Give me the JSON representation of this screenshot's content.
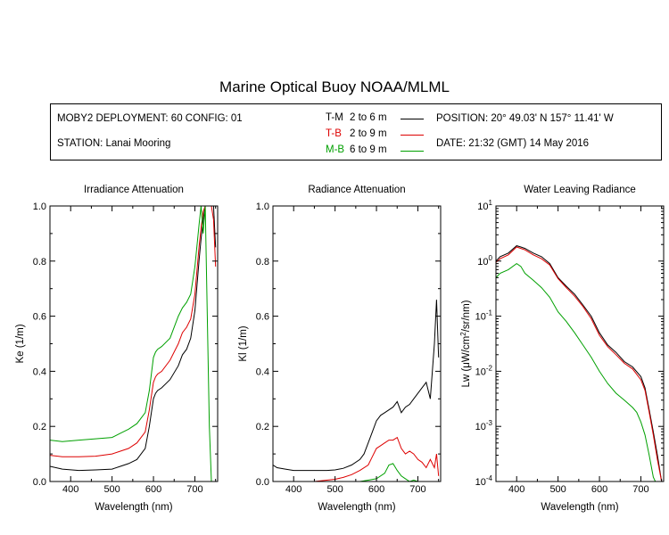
{
  "title": "Marine Optical Buoy NOAA/MLML",
  "info": {
    "deployment": "MOBY2 DEPLOYMENT: 60 CONFIG: 01",
    "station": "STATION: Lanai Mooring",
    "position": "POSITION: 20° 49.03' N   157° 11.41' W",
    "date": "DATE: 21:32 (GMT) 14 May 2016",
    "legend": [
      {
        "code": "T-M",
        "range": "2 to 6  m",
        "color": "#000000"
      },
      {
        "code": "T-B",
        "range": "2 to 9  m",
        "color": "#dd0000"
      },
      {
        "code": "M-B",
        "range": "6 to 9  m",
        "color": "#00a000"
      }
    ]
  },
  "colors": {
    "T-M": "#000000",
    "T-B": "#dd0000",
    "M-B": "#00a000"
  },
  "chart_data": [
    {
      "type": "line",
      "title": "Irradiance Attenuation",
      "xlabel": "Wavelength (nm)",
      "ylabel": "Ke  (1/m)",
      "xlim": [
        350,
        755
      ],
      "ylim": [
        0,
        1
      ],
      "xticks": [
        400,
        500,
        600,
        700
      ],
      "yticks": [
        0.0,
        0.2,
        0.4,
        0.6,
        0.8,
        1.0
      ],
      "ytick_labels": [
        "0.0",
        "0.2",
        "0.4",
        "0.6",
        "0.8",
        "1.0"
      ],
      "grid": false,
      "series": [
        {
          "name": "T-M",
          "x": [
            350,
            380,
            420,
            460,
            500,
            520,
            540,
            560,
            580,
            590,
            600,
            605,
            610,
            620,
            640,
            660,
            670,
            680,
            690,
            700,
            710,
            715,
            720,
            725,
            730,
            740,
            745,
            750
          ],
          "y": [
            0.055,
            0.045,
            0.04,
            0.042,
            0.045,
            0.055,
            0.065,
            0.08,
            0.12,
            0.2,
            0.3,
            0.32,
            0.33,
            0.34,
            0.37,
            0.42,
            0.46,
            0.48,
            0.52,
            0.62,
            0.8,
            0.88,
            0.95,
            1.0,
            1.0,
            1.0,
            1.0,
            0.85
          ]
        },
        {
          "name": "T-B",
          "x": [
            350,
            380,
            420,
            460,
            500,
            520,
            540,
            560,
            580,
            590,
            600,
            605,
            610,
            620,
            640,
            660,
            670,
            680,
            690,
            700,
            710,
            715,
            720,
            725,
            730,
            740,
            745,
            750
          ],
          "y": [
            0.095,
            0.09,
            0.09,
            0.092,
            0.1,
            0.11,
            0.12,
            0.14,
            0.18,
            0.26,
            0.36,
            0.38,
            0.39,
            0.4,
            0.44,
            0.5,
            0.54,
            0.56,
            0.59,
            0.68,
            0.85,
            0.92,
            0.98,
            1.0,
            1.0,
            1.0,
            0.95,
            0.78
          ]
        },
        {
          "name": "M-B",
          "x": [
            350,
            380,
            420,
            460,
            500,
            520,
            540,
            560,
            580,
            590,
            600,
            605,
            610,
            620,
            640,
            660,
            670,
            680,
            690,
            700,
            710,
            715,
            720,
            725,
            730,
            735,
            740,
            745,
            750
          ],
          "y": [
            0.15,
            0.145,
            0.15,
            0.155,
            0.16,
            0.175,
            0.19,
            0.21,
            0.25,
            0.33,
            0.45,
            0.47,
            0.48,
            0.49,
            0.52,
            0.6,
            0.63,
            0.65,
            0.68,
            0.78,
            0.93,
            1.0,
            0.9,
            1.0,
            0.6,
            0.2,
            0.0,
            0.0,
            0.0
          ]
        }
      ]
    },
    {
      "type": "line",
      "title": "Radiance Attenuation",
      "xlabel": "Wavelength (nm)",
      "ylabel": "Kl  (1/m)",
      "xlim": [
        350,
        755
      ],
      "ylim": [
        0,
        1
      ],
      "xticks": [
        400,
        500,
        600,
        700
      ],
      "yticks": [
        0.0,
        0.2,
        0.4,
        0.6,
        0.8,
        1.0
      ],
      "ytick_labels": [
        "0.0",
        "0.2",
        "0.4",
        "0.6",
        "0.8",
        "1.0"
      ],
      "grid": false,
      "series": [
        {
          "name": "T-M",
          "x": [
            350,
            360,
            380,
            400,
            420,
            440,
            460,
            480,
            500,
            520,
            540,
            560,
            570,
            580,
            590,
            600,
            610,
            620,
            640,
            650,
            660,
            670,
            680,
            690,
            700,
            710,
            720,
            730,
            735,
            740,
            745,
            750
          ],
          "y": [
            0.06,
            0.05,
            0.045,
            0.04,
            0.04,
            0.04,
            0.04,
            0.04,
            0.042,
            0.048,
            0.06,
            0.08,
            0.1,
            0.14,
            0.18,
            0.22,
            0.24,
            0.25,
            0.27,
            0.29,
            0.25,
            0.27,
            0.28,
            0.3,
            0.32,
            0.34,
            0.36,
            0.3,
            0.4,
            0.5,
            0.66,
            0.45
          ]
        },
        {
          "name": "T-B",
          "x": [
            450,
            480,
            500,
            520,
            540,
            560,
            580,
            590,
            600,
            610,
            620,
            630,
            640,
            650,
            660,
            670,
            680,
            690,
            700,
            710,
            720,
            730,
            740,
            745,
            750
          ],
          "y": [
            0.0,
            0.005,
            0.008,
            0.015,
            0.025,
            0.04,
            0.06,
            0.09,
            0.12,
            0.13,
            0.14,
            0.15,
            0.15,
            0.16,
            0.12,
            0.1,
            0.11,
            0.1,
            0.08,
            0.07,
            0.05,
            0.08,
            0.05,
            0.1,
            0.02
          ]
        },
        {
          "name": "M-B",
          "x": [
            560,
            580,
            600,
            620,
            630,
            640,
            650,
            660,
            670,
            680,
            690,
            700
          ],
          "y": [
            0.0,
            0.005,
            0.01,
            0.03,
            0.06,
            0.065,
            0.04,
            0.02,
            0.01,
            0.0,
            0.005,
            0.0
          ]
        }
      ]
    },
    {
      "type": "line",
      "title": "Water Leaving Radiance",
      "xlabel": "Wavelength (nm)",
      "ylabel": "Lw  (μW/cm²/sr/nm)",
      "yscale": "log",
      "xlim": [
        350,
        755
      ],
      "ylim": [
        0.0001,
        10
      ],
      "xticks": [
        400,
        500,
        600,
        700
      ],
      "yticks": [
        0.0001,
        0.001,
        0.01,
        0.1,
        1,
        10
      ],
      "ytick_labels": [
        "10^-4",
        "10^-3",
        "10^-2",
        "10^-1",
        "10^0",
        "10^1"
      ],
      "grid": false,
      "series": [
        {
          "name": "T-M",
          "x": [
            350,
            360,
            380,
            400,
            410,
            420,
            440,
            460,
            480,
            500,
            520,
            540,
            560,
            580,
            600,
            620,
            640,
            660,
            680,
            700,
            710,
            720,
            730,
            740,
            750
          ],
          "y": [
            1.0,
            1.2,
            1.4,
            1.9,
            1.8,
            1.7,
            1.4,
            1.2,
            0.9,
            0.5,
            0.35,
            0.25,
            0.16,
            0.1,
            0.05,
            0.03,
            0.022,
            0.015,
            0.012,
            0.008,
            0.005,
            0.002,
            0.0008,
            0.0003,
            0.0001
          ]
        },
        {
          "name": "T-B",
          "x": [
            350,
            360,
            380,
            400,
            410,
            420,
            440,
            460,
            480,
            500,
            520,
            540,
            560,
            580,
            600,
            620,
            640,
            660,
            680,
            700,
            710,
            720,
            730,
            740,
            750
          ],
          "y": [
            0.95,
            1.1,
            1.3,
            1.8,
            1.7,
            1.6,
            1.3,
            1.1,
            0.85,
            0.48,
            0.33,
            0.23,
            0.15,
            0.09,
            0.045,
            0.028,
            0.02,
            0.014,
            0.011,
            0.007,
            0.0045,
            0.0018,
            0.0007,
            0.00025,
            0.0001
          ]
        },
        {
          "name": "M-B",
          "x": [
            350,
            360,
            380,
            400,
            410,
            420,
            440,
            460,
            480,
            500,
            520,
            540,
            560,
            580,
            600,
            620,
            640,
            660,
            680,
            690,
            700,
            710,
            720,
            730,
            735
          ],
          "y": [
            0.5,
            0.6,
            0.7,
            0.9,
            0.8,
            0.6,
            0.45,
            0.33,
            0.22,
            0.12,
            0.08,
            0.05,
            0.03,
            0.018,
            0.01,
            0.006,
            0.004,
            0.003,
            0.0022,
            0.0018,
            0.0012,
            0.0007,
            0.0003,
            0.00012,
            0.0001
          ]
        }
      ]
    }
  ]
}
